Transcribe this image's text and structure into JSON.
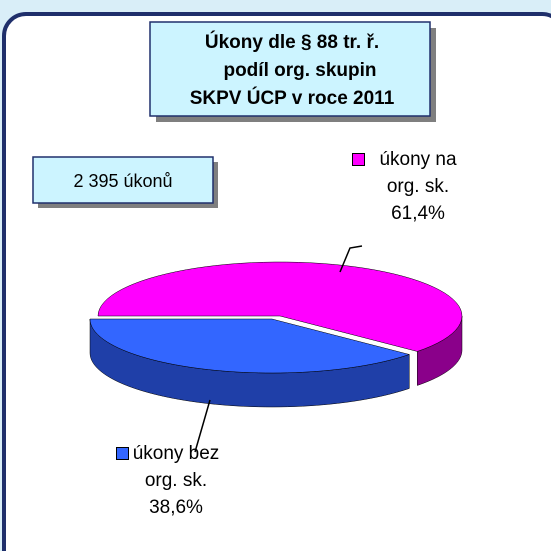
{
  "chart_data": {
    "type": "pie",
    "title": [
      "Úkony dle § 88 tr. ř.",
      "podíl org. skupin",
      "SKPV ÚCP v roce 2011"
    ],
    "annotation": "2 395 úkonů",
    "categories": [
      "úkony na org. sk.",
      "úkony bez org. sk."
    ],
    "values": [
      61.4,
      38.6
    ],
    "value_labels": [
      "61,4%",
      "38,6%"
    ],
    "colors": [
      "#ff00ff",
      "#3366ff"
    ],
    "side_colors": [
      "#8a008a",
      "#1f3fa8"
    ]
  }
}
